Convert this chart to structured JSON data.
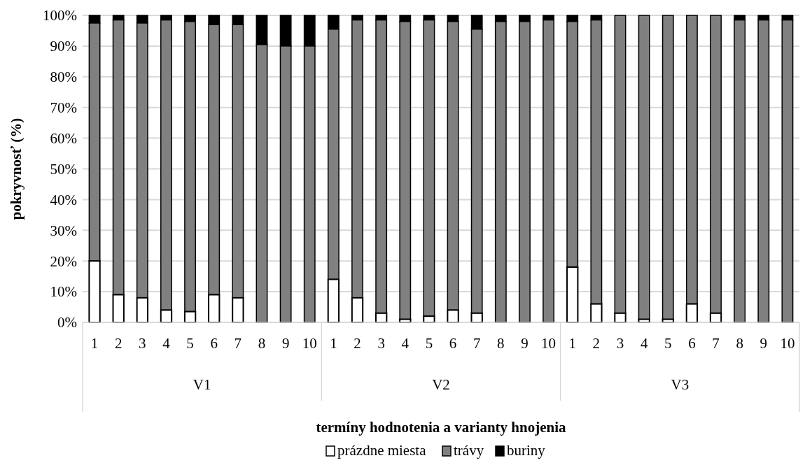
{
  "chart_data": {
    "type": "bar",
    "stacked": true,
    "xlabel": "termíny hodnotenia a varianty hnojenia",
    "ylabel": "pokryvnosť (%)",
    "categories": [
      "1",
      "2",
      "3",
      "4",
      "5",
      "6",
      "7",
      "8",
      "9",
      "10",
      "1",
      "2",
      "3",
      "4",
      "5",
      "6",
      "7",
      "8",
      "9",
      "10",
      "1",
      "2",
      "3",
      "4",
      "5",
      "6",
      "7",
      "8",
      "9",
      "10"
    ],
    "series": [
      {
        "name": "prázdne miesta",
        "color": "#ffffff",
        "values": [
          20,
          9,
          8,
          4,
          3.5,
          9,
          8,
          0,
          0,
          0,
          14,
          8,
          3,
          1,
          2,
          4,
          3,
          0,
          0,
          0,
          18,
          6,
          3,
          1,
          1,
          6,
          3,
          0,
          0,
          0
        ]
      },
      {
        "name": "trávy",
        "color": "#808080",
        "values": [
          77.5,
          89.5,
          89.5,
          94.5,
          94.5,
          88,
          89,
          90.5,
          90,
          90,
          81.5,
          90.5,
          95.5,
          97,
          96.5,
          94,
          92.5,
          98,
          98,
          98.5,
          80,
          92.5,
          97,
          99,
          99,
          94,
          97,
          98.5,
          98.5,
          98.5
        ]
      },
      {
        "name": "buriny",
        "color": "#000000",
        "values": [
          2.5,
          1.5,
          2.5,
          1.5,
          2,
          3,
          3,
          9.5,
          10,
          10,
          4.5,
          1.5,
          1.5,
          2,
          1.5,
          2,
          4.5,
          2,
          2,
          1.5,
          2,
          1.5,
          0,
          0,
          0,
          0,
          0,
          1.5,
          1.5,
          1.5
        ]
      }
    ],
    "ylim": [
      0,
      100
    ],
    "yticks": [
      {
        "value": 0,
        "label": "0%"
      },
      {
        "value": 10,
        "label": "10%"
      },
      {
        "value": 20,
        "label": "20%"
      },
      {
        "value": 30,
        "label": "30%"
      },
      {
        "value": 40,
        "label": "40%"
      },
      {
        "value": 50,
        "label": "50%"
      },
      {
        "value": 60,
        "label": "60%"
      },
      {
        "value": 70,
        "label": "70%"
      },
      {
        "value": 80,
        "label": "80%"
      },
      {
        "value": 90,
        "label": "90%"
      },
      {
        "value": 100,
        "label": "100%"
      }
    ],
    "grid": "y",
    "legend": "bottom",
    "annotations": [
      "V1",
      "V2",
      "V3"
    ]
  }
}
